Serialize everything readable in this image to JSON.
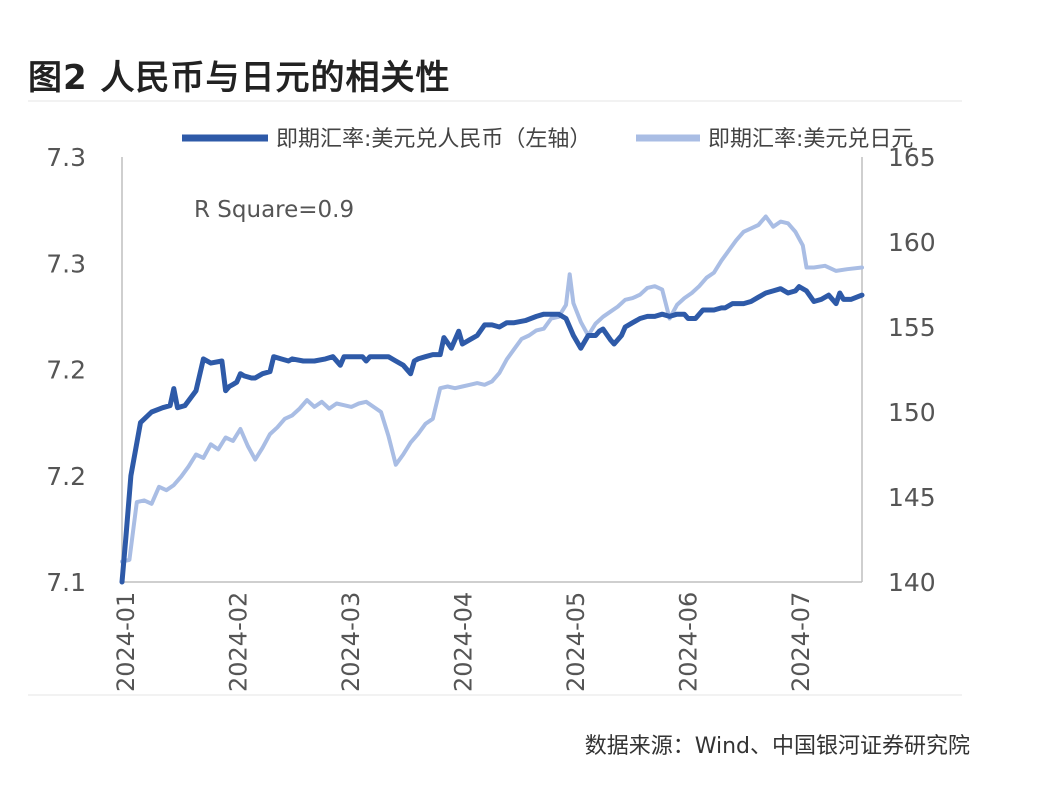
{
  "title": "图2  人民币与日元的相关性",
  "source": "数据来源：Wind、中国银河证券研究院",
  "chart_data": {
    "type": "line",
    "annotation": "R Square=0.9",
    "x_tick_labels": [
      "2024-01",
      "2024-02",
      "2024-03",
      "2024-04",
      "2024-05",
      "2024-06",
      "2024-07"
    ],
    "y_left": {
      "ticks": [
        "7.3",
        "7.3",
        "7.2",
        "7.2",
        "7.1"
      ],
      "range": [
        7.1,
        7.3
      ]
    },
    "y_right": {
      "ticks": [
        "165",
        "160",
        "155",
        "150",
        "145",
        "140"
      ],
      "range": [
        140,
        165
      ]
    },
    "colors": {
      "cny": "#2e5aa8",
      "jpy": "#a9bde4",
      "axis": "#bfbfbf",
      "text": "#555555"
    },
    "series": [
      {
        "name": "即期汇率:美元兑人民币（左轴）",
        "axis": "left",
        "points": [
          [
            0.0,
            7.1
          ],
          [
            0.005,
            7.12
          ],
          [
            0.012,
            7.15
          ],
          [
            0.025,
            7.175
          ],
          [
            0.04,
            7.18
          ],
          [
            0.055,
            7.182
          ],
          [
            0.065,
            7.183
          ],
          [
            0.07,
            7.191
          ],
          [
            0.075,
            7.182
          ],
          [
            0.085,
            7.183
          ],
          [
            0.1,
            7.19
          ],
          [
            0.11,
            7.205
          ],
          [
            0.12,
            7.203
          ],
          [
            0.135,
            7.204
          ],
          [
            0.14,
            7.19
          ],
          [
            0.145,
            7.192
          ],
          [
            0.15,
            7.193
          ],
          [
            0.155,
            7.194
          ],
          [
            0.16,
            7.198
          ],
          [
            0.165,
            7.197
          ],
          [
            0.175,
            7.196
          ],
          [
            0.18,
            7.196
          ],
          [
            0.19,
            7.198
          ],
          [
            0.2,
            7.199
          ],
          [
            0.205,
            7.206
          ],
          [
            0.215,
            7.205
          ],
          [
            0.225,
            7.204
          ],
          [
            0.23,
            7.205
          ],
          [
            0.245,
            7.204
          ],
          [
            0.26,
            7.204
          ],
          [
            0.275,
            7.205
          ],
          [
            0.285,
            7.206
          ],
          [
            0.295,
            7.202
          ],
          [
            0.3,
            7.206
          ],
          [
            0.315,
            7.206
          ],
          [
            0.325,
            7.206
          ],
          [
            0.33,
            7.204
          ],
          [
            0.335,
            7.206
          ],
          [
            0.345,
            7.206
          ],
          [
            0.36,
            7.206
          ],
          [
            0.37,
            7.204
          ],
          [
            0.38,
            7.202
          ],
          [
            0.39,
            7.198
          ],
          [
            0.395,
            7.204
          ],
          [
            0.4,
            7.205
          ],
          [
            0.41,
            7.206
          ],
          [
            0.42,
            7.207
          ],
          [
            0.43,
            7.207
          ],
          [
            0.435,
            7.215
          ],
          [
            0.445,
            7.21
          ],
          [
            0.455,
            7.218
          ],
          [
            0.46,
            7.212
          ],
          [
            0.47,
            7.214
          ],
          [
            0.48,
            7.216
          ],
          [
            0.49,
            7.221
          ],
          [
            0.5,
            7.221
          ],
          [
            0.51,
            7.22
          ],
          [
            0.52,
            7.222
          ],
          [
            0.53,
            7.222
          ],
          [
            0.545,
            7.223
          ],
          [
            0.56,
            7.225
          ],
          [
            0.57,
            7.226
          ],
          [
            0.58,
            7.226
          ],
          [
            0.59,
            7.226
          ],
          [
            0.6,
            7.224
          ],
          [
            0.61,
            7.216
          ],
          [
            0.62,
            7.21
          ],
          [
            0.63,
            7.216
          ],
          [
            0.64,
            7.216
          ],
          [
            0.645,
            7.218
          ],
          [
            0.65,
            7.219
          ],
          [
            0.66,
            7.214
          ],
          [
            0.665,
            7.212
          ],
          [
            0.675,
            7.216
          ],
          [
            0.68,
            7.22
          ],
          [
            0.69,
            7.222
          ],
          [
            0.7,
            7.224
          ],
          [
            0.71,
            7.225
          ],
          [
            0.72,
            7.225
          ],
          [
            0.73,
            7.226
          ],
          [
            0.74,
            7.225
          ],
          [
            0.75,
            7.226
          ],
          [
            0.76,
            7.226
          ],
          [
            0.765,
            7.224
          ],
          [
            0.775,
            7.224
          ],
          [
            0.785,
            7.228
          ],
          [
            0.79,
            7.228
          ],
          [
            0.8,
            7.228
          ],
          [
            0.81,
            7.229
          ],
          [
            0.815,
            7.229
          ],
          [
            0.825,
            7.231
          ],
          [
            0.84,
            7.231
          ],
          [
            0.85,
            7.232
          ],
          [
            0.86,
            7.234
          ],
          [
            0.87,
            7.236
          ],
          [
            0.88,
            7.237
          ],
          [
            0.89,
            7.238
          ],
          [
            0.9,
            7.236
          ],
          [
            0.91,
            7.237
          ],
          [
            0.915,
            7.239
          ],
          [
            0.925,
            7.237
          ],
          [
            0.935,
            7.232
          ],
          [
            0.945,
            7.233
          ],
          [
            0.955,
            7.235
          ],
          [
            0.965,
            7.231
          ],
          [
            0.97,
            7.236
          ],
          [
            0.975,
            7.233
          ],
          [
            0.985,
            7.233
          ],
          [
            1.0,
            7.235
          ]
        ]
      },
      {
        "name": "即期汇率:美元兑日元",
        "axis": "right",
        "points": [
          [
            0.0,
            141.2
          ],
          [
            0.01,
            141.3
          ],
          [
            0.02,
            144.7
          ],
          [
            0.03,
            144.8
          ],
          [
            0.04,
            144.6
          ],
          [
            0.05,
            145.6
          ],
          [
            0.06,
            145.4
          ],
          [
            0.07,
            145.7
          ],
          [
            0.08,
            146.2
          ],
          [
            0.09,
            146.8
          ],
          [
            0.1,
            147.5
          ],
          [
            0.11,
            147.3
          ],
          [
            0.12,
            148.1
          ],
          [
            0.13,
            147.8
          ],
          [
            0.14,
            148.5
          ],
          [
            0.15,
            148.3
          ],
          [
            0.16,
            149.0
          ],
          [
            0.17,
            148.0
          ],
          [
            0.18,
            147.2
          ],
          [
            0.19,
            147.9
          ],
          [
            0.2,
            148.7
          ],
          [
            0.21,
            149.1
          ],
          [
            0.22,
            149.6
          ],
          [
            0.23,
            149.8
          ],
          [
            0.24,
            150.2
          ],
          [
            0.25,
            150.7
          ],
          [
            0.26,
            150.3
          ],
          [
            0.27,
            150.6
          ],
          [
            0.28,
            150.2
          ],
          [
            0.29,
            150.5
          ],
          [
            0.3,
            150.4
          ],
          [
            0.31,
            150.3
          ],
          [
            0.32,
            150.5
          ],
          [
            0.33,
            150.6
          ],
          [
            0.34,
            150.3
          ],
          [
            0.35,
            150.0
          ],
          [
            0.36,
            148.6
          ],
          [
            0.37,
            146.9
          ],
          [
            0.38,
            147.5
          ],
          [
            0.39,
            148.2
          ],
          [
            0.4,
            148.7
          ],
          [
            0.41,
            149.3
          ],
          [
            0.42,
            149.6
          ],
          [
            0.43,
            151.4
          ],
          [
            0.44,
            151.5
          ],
          [
            0.45,
            151.4
          ],
          [
            0.46,
            151.5
          ],
          [
            0.47,
            151.6
          ],
          [
            0.48,
            151.7
          ],
          [
            0.49,
            151.6
          ],
          [
            0.5,
            151.8
          ],
          [
            0.51,
            152.3
          ],
          [
            0.52,
            153.1
          ],
          [
            0.53,
            153.7
          ],
          [
            0.54,
            154.3
          ],
          [
            0.55,
            154.5
          ],
          [
            0.56,
            154.8
          ],
          [
            0.57,
            154.9
          ],
          [
            0.58,
            155.5
          ],
          [
            0.59,
            155.6
          ],
          [
            0.6,
            156.3
          ],
          [
            0.605,
            158.1
          ],
          [
            0.61,
            156.4
          ],
          [
            0.62,
            155.3
          ],
          [
            0.63,
            154.5
          ],
          [
            0.64,
            155.2
          ],
          [
            0.65,
            155.6
          ],
          [
            0.66,
            155.9
          ],
          [
            0.67,
            156.2
          ],
          [
            0.68,
            156.6
          ],
          [
            0.69,
            156.7
          ],
          [
            0.7,
            156.9
          ],
          [
            0.71,
            157.3
          ],
          [
            0.72,
            157.4
          ],
          [
            0.73,
            157.2
          ],
          [
            0.74,
            155.5
          ],
          [
            0.75,
            156.3
          ],
          [
            0.76,
            156.7
          ],
          [
            0.77,
            157.0
          ],
          [
            0.78,
            157.4
          ],
          [
            0.79,
            157.9
          ],
          [
            0.8,
            158.2
          ],
          [
            0.81,
            158.9
          ],
          [
            0.82,
            159.5
          ],
          [
            0.83,
            160.1
          ],
          [
            0.84,
            160.6
          ],
          [
            0.85,
            160.8
          ],
          [
            0.86,
            161.0
          ],
          [
            0.87,
            161.5
          ],
          [
            0.88,
            160.9
          ],
          [
            0.89,
            161.2
          ],
          [
            0.9,
            161.1
          ],
          [
            0.91,
            160.6
          ],
          [
            0.92,
            159.8
          ],
          [
            0.925,
            158.5
          ],
          [
            0.935,
            158.5
          ],
          [
            0.95,
            158.6
          ],
          [
            0.965,
            158.3
          ],
          [
            0.98,
            158.4
          ],
          [
            1.0,
            158.5
          ]
        ]
      }
    ]
  }
}
